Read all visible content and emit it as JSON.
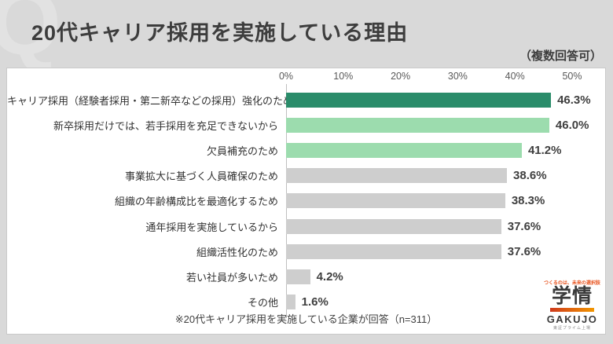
{
  "header": {
    "title": "20代キャリア採用を実施している理由",
    "note": "（複数回答可）",
    "watermark": "Q"
  },
  "chart_data": {
    "type": "bar",
    "orientation": "horizontal",
    "title": "20代キャリア採用を実施している理由",
    "subtitle": "（複数回答可）",
    "xlim": [
      0,
      50
    ],
    "x_ticks": [
      "0%",
      "10%",
      "20%",
      "30%",
      "40%",
      "50%"
    ],
    "grid": false,
    "categories": [
      "キャリア採用（経験者採用・第二新卒などの採用）強化のため",
      "新卒採用だけでは、若手採用を充足できないから",
      "欠員補充のため",
      "事業拡大に基づく人員確保のため",
      "組織の年齢構成比を最適化するため",
      "通年採用を実施しているから",
      "組織活性化のため",
      "若い社員が多いため",
      "その他"
    ],
    "values": [
      46.3,
      46.0,
      41.2,
      38.6,
      38.3,
      37.6,
      37.6,
      4.2,
      1.6
    ],
    "value_labels": [
      "46.3%",
      "46.0%",
      "41.2%",
      "38.6%",
      "38.3%",
      "37.6%",
      "37.6%",
      "4.2%",
      "1.6%"
    ],
    "bar_colors": [
      "#2a8c6a",
      "#9cdcae",
      "#9cdcae",
      "#cecece",
      "#cecece",
      "#cecece",
      "#cecece",
      "#cecece",
      "#cecece"
    ],
    "footnote": "※20代キャリア採用を実施している企業が回答（n=311）"
  },
  "footnote": "※20代キャリア採用を実施している企業が回答（n=311）",
  "logo": {
    "tagline": "つくるのは、未来の選択肢",
    "name": "学情",
    "romaji": "GAKUJO",
    "sub": "東証プライム上場"
  },
  "colors": {
    "page_background": "#d9d9d9",
    "panel_background": "#ffffff",
    "bar_dark_green": "#2a8c6a",
    "bar_light_green": "#9cdcae",
    "bar_gray": "#cecece",
    "title_text": "#3d3d3d",
    "logo_orange": "#e8541f"
  }
}
